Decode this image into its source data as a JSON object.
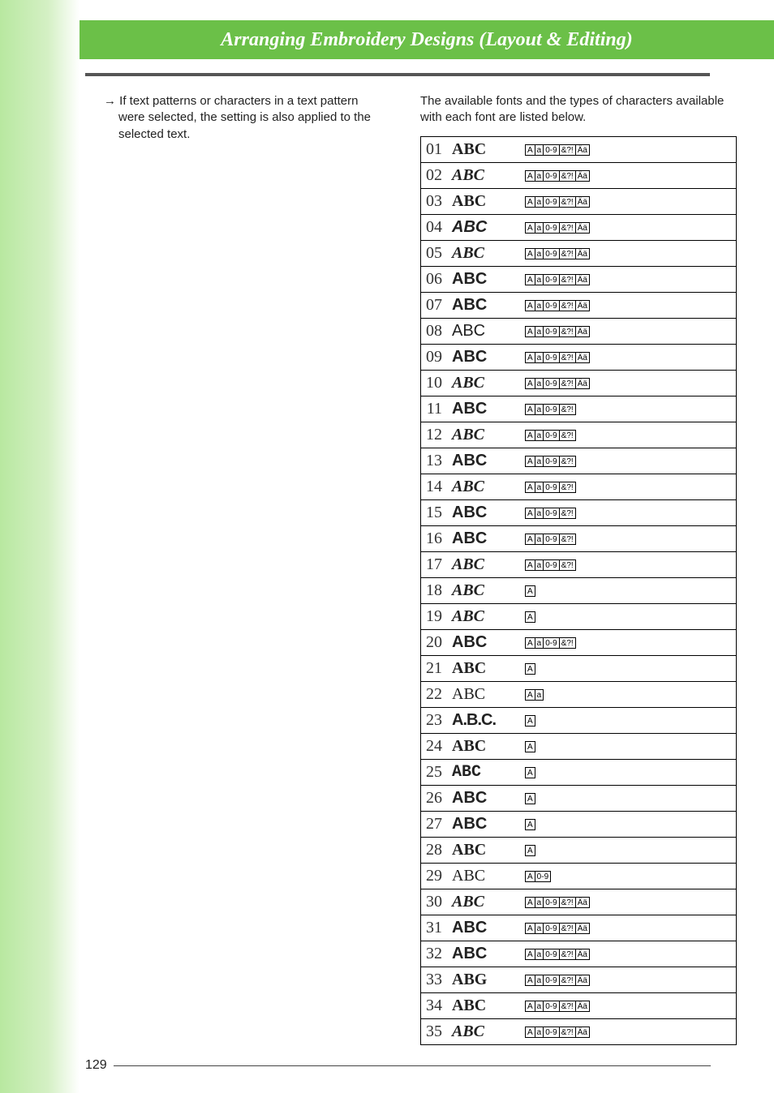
{
  "header": {
    "title": "Arranging Embroidery Designs (Layout & Editing)"
  },
  "left_column": {
    "arrow": "→",
    "note": "If text patterns or characters in a text pattern were selected, the setting is also applied to the selected text."
  },
  "right_column": {
    "intro": "The available fonts and the types of characters available with each font are listed below."
  },
  "badges": {
    "A": "A",
    "a": "a",
    "num": "0-9",
    "sym": "&?!",
    "acc": "Ää"
  },
  "fonts": [
    {
      "num": "01",
      "sample": "ABC",
      "style": "f-serif-bold",
      "badges": [
        "A",
        "a",
        "num",
        "sym",
        "acc"
      ]
    },
    {
      "num": "02",
      "sample": "ABC",
      "style": "f-script",
      "badges": [
        "A",
        "a",
        "num",
        "sym",
        "acc"
      ]
    },
    {
      "num": "03",
      "sample": "ABC",
      "style": "f-blackletter",
      "badges": [
        "A",
        "a",
        "num",
        "sym",
        "acc"
      ]
    },
    {
      "num": "04",
      "sample": "ABC",
      "style": "f-narrow",
      "badges": [
        "A",
        "a",
        "num",
        "sym",
        "acc"
      ]
    },
    {
      "num": "05",
      "sample": "ABC",
      "style": "f-hand-italic",
      "badges": [
        "A",
        "a",
        "num",
        "sym",
        "acc"
      ]
    },
    {
      "num": "06",
      "sample": "ABC",
      "style": "f-sans-bold",
      "badges": [
        "A",
        "a",
        "num",
        "sym",
        "acc"
      ]
    },
    {
      "num": "07",
      "sample": "ABC",
      "style": "f-sans-bold",
      "badges": [
        "A",
        "a",
        "num",
        "sym",
        "acc"
      ]
    },
    {
      "num": "08",
      "sample": "ABC",
      "style": "f-sans",
      "badges": [
        "A",
        "a",
        "num",
        "sym",
        "acc"
      ]
    },
    {
      "num": "09",
      "sample": "ABC",
      "style": "f-outline-bold",
      "badges": [
        "A",
        "a",
        "num",
        "sym",
        "acc"
      ]
    },
    {
      "num": "10",
      "sample": "ABC",
      "style": "f-italic-serif",
      "badges": [
        "A",
        "a",
        "num",
        "sym",
        "acc"
      ]
    },
    {
      "num": "11",
      "sample": "ABC",
      "style": "f-stencil",
      "badges": [
        "A",
        "a",
        "num",
        "sym"
      ]
    },
    {
      "num": "12",
      "sample": "ABC",
      "style": "f-italic-serif",
      "badges": [
        "A",
        "a",
        "num",
        "sym"
      ]
    },
    {
      "num": "13",
      "sample": "ABC",
      "style": "f-sans-bold",
      "badges": [
        "A",
        "a",
        "num",
        "sym"
      ]
    },
    {
      "num": "14",
      "sample": "ABC",
      "style": "f-cursive",
      "badges": [
        "A",
        "a",
        "num",
        "sym"
      ]
    },
    {
      "num": "15",
      "sample": "ABC",
      "style": "f-stencil",
      "badges": [
        "A",
        "a",
        "num",
        "sym"
      ]
    },
    {
      "num": "16",
      "sample": "ABC",
      "style": "f-condensed",
      "badges": [
        "A",
        "a",
        "num",
        "sym"
      ]
    },
    {
      "num": "17",
      "sample": "ABC",
      "style": "f-cursive",
      "badges": [
        "A",
        "a",
        "num",
        "sym"
      ]
    },
    {
      "num": "18",
      "sample": "ABC",
      "style": "f-script",
      "badges": [
        "A"
      ]
    },
    {
      "num": "19",
      "sample": "ABC",
      "style": "f-cursive",
      "badges": [
        "A"
      ]
    },
    {
      "num": "20",
      "sample": "ABC",
      "style": "f-sans-bold",
      "badges": [
        "A",
        "a",
        "num",
        "sym"
      ]
    },
    {
      "num": "21",
      "sample": "ABC",
      "style": "f-blackletter",
      "badges": [
        "A"
      ]
    },
    {
      "num": "22",
      "sample": "ABC",
      "style": "f-serif",
      "badges": [
        "A",
        "a"
      ]
    },
    {
      "num": "23",
      "sample": "A.B.C.",
      "style": "f-sans-bold f-dots",
      "badges": [
        "A"
      ]
    },
    {
      "num": "24",
      "sample": "ABC",
      "style": "f-blackletter",
      "badges": [
        "A"
      ]
    },
    {
      "num": "25",
      "sample": "ABC",
      "style": "f-mono",
      "badges": [
        "A"
      ]
    },
    {
      "num": "26",
      "sample": "ABC",
      "style": "f-outline-bold",
      "badges": [
        "A"
      ]
    },
    {
      "num": "27",
      "sample": "ABC",
      "style": "f-condensed",
      "badges": [
        "A"
      ]
    },
    {
      "num": "28",
      "sample": "ABC",
      "style": "f-serif-bold",
      "badges": [
        "A"
      ]
    },
    {
      "num": "29",
      "sample": "ABC",
      "style": "f-serif",
      "badges": [
        "A",
        "num"
      ]
    },
    {
      "num": "30",
      "sample": "ABC",
      "style": "f-cursive",
      "badges": [
        "A",
        "a",
        "num",
        "sym",
        "acc"
      ]
    },
    {
      "num": "31",
      "sample": "ABC",
      "style": "f-sans-bold",
      "badges": [
        "A",
        "a",
        "num",
        "sym",
        "acc"
      ]
    },
    {
      "num": "32",
      "sample": "ABC",
      "style": "f-sans-bold",
      "badges": [
        "A",
        "a",
        "num",
        "sym",
        "acc"
      ]
    },
    {
      "num": "33",
      "sample": "ABG",
      "style": "f-blackletter",
      "badges": [
        "A",
        "a",
        "num",
        "sym",
        "acc"
      ]
    },
    {
      "num": "34",
      "sample": "ABC",
      "style": "f-serif-bold",
      "badges": [
        "A",
        "a",
        "num",
        "sym",
        "acc"
      ]
    },
    {
      "num": "35",
      "sample": "ABC",
      "style": "f-italic-serif",
      "badges": [
        "A",
        "a",
        "num",
        "sym",
        "acc"
      ]
    }
  ],
  "page_number": "129"
}
